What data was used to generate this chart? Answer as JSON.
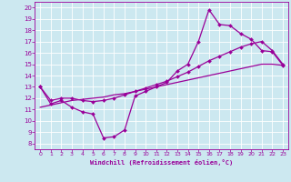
{
  "xlabel": "Windchill (Refroidissement éolien,°C)",
  "background_color": "#cce8f0",
  "line_color": "#990099",
  "grid_color": "#ffffff",
  "xlim": [
    -0.5,
    23.5
  ],
  "ylim": [
    7.5,
    20.5
  ],
  "xticks": [
    0,
    1,
    2,
    3,
    4,
    5,
    6,
    7,
    8,
    9,
    10,
    11,
    12,
    13,
    14,
    15,
    16,
    17,
    18,
    19,
    20,
    21,
    22,
    23
  ],
  "yticks": [
    8,
    9,
    10,
    11,
    12,
    13,
    14,
    15,
    16,
    17,
    18,
    19,
    20
  ],
  "hours": [
    0,
    1,
    2,
    3,
    4,
    5,
    6,
    7,
    8,
    9,
    10,
    11,
    12,
    13,
    14,
    15,
    16,
    17,
    18,
    19,
    20,
    21,
    22,
    23
  ],
  "temp_actual": [
    13.0,
    11.5,
    11.8,
    11.2,
    10.8,
    10.6,
    8.5,
    8.6,
    9.2,
    12.2,
    12.6,
    13.0,
    13.4,
    14.4,
    15.0,
    17.0,
    19.8,
    18.5,
    18.4,
    17.7,
    17.2,
    16.2,
    16.1,
    14.9
  ],
  "temp_smooth": [
    13.0,
    11.8,
    12.0,
    12.0,
    11.8,
    11.7,
    11.8,
    12.0,
    12.3,
    12.6,
    12.9,
    13.2,
    13.5,
    13.9,
    14.3,
    14.8,
    15.3,
    15.7,
    16.1,
    16.5,
    16.8,
    17.0,
    16.2,
    15.0
  ],
  "temp_linear": [
    11.2,
    11.4,
    11.6,
    11.8,
    11.9,
    12.0,
    12.1,
    12.3,
    12.4,
    12.6,
    12.8,
    13.0,
    13.2,
    13.4,
    13.6,
    13.8,
    14.0,
    14.2,
    14.4,
    14.6,
    14.8,
    15.0,
    15.0,
    14.9
  ]
}
